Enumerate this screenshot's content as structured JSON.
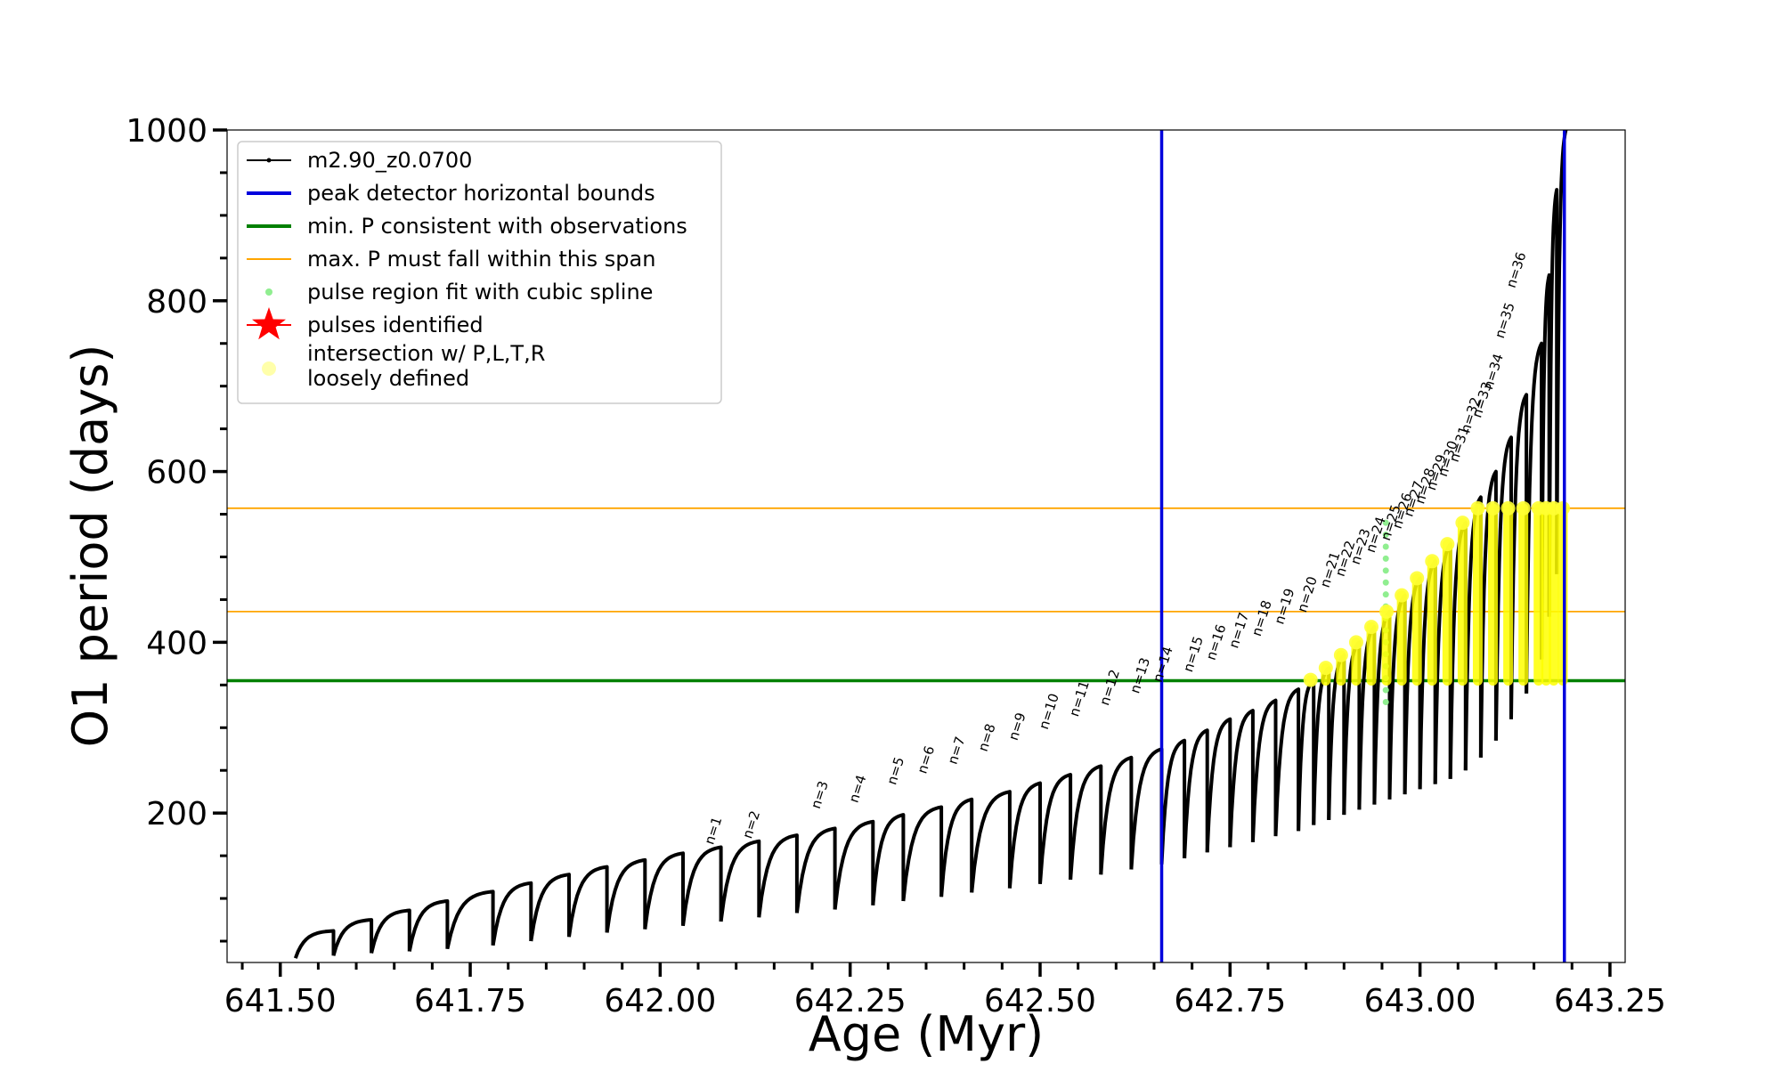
{
  "chart_data": {
    "type": "line",
    "title": "",
    "xlabel": "Age (Myr)",
    "ylabel": "O1 period (days)",
    "xlim": [
      641.43,
      643.27
    ],
    "ylim": [
      25,
      1000
    ],
    "x_ticks": [
      641.5,
      641.75,
      642.0,
      642.25,
      642.5,
      642.75,
      643.0,
      643.25
    ],
    "x_tick_labels": [
      "641.50",
      "641.75",
      "642.00",
      "642.25",
      "642.50",
      "642.75",
      "643.00",
      "643.25"
    ],
    "y_ticks": [
      200,
      400,
      600,
      800,
      1000
    ],
    "y_tick_labels": [
      "200",
      "400",
      "600",
      "800",
      "1000"
    ],
    "y_minor_step": 50,
    "x_minor_step": 0.05,
    "grid": false,
    "legend_position": "top-left",
    "legend": [
      {
        "label": "m2.90_z0.0700",
        "style": "line-dot",
        "color": "#000000"
      },
      {
        "label": "peak detector horizontal bounds",
        "style": "line",
        "color": "#0000dd"
      },
      {
        "label": "min. P consistent with observations",
        "style": "line",
        "color": "#008000"
      },
      {
        "label": "max. P must fall within this span",
        "style": "thin-line",
        "color": "#ffa500"
      },
      {
        "label": "pulse region fit with cubic spline",
        "style": "dot",
        "color": "#90ee90"
      },
      {
        "label": "pulses identified",
        "style": "star",
        "color": "#ff0000"
      },
      {
        "label_lines": [
          "intersection w/ P,L,T,R",
          "loosely defined"
        ],
        "style": "circle",
        "color": "#ffffaa"
      }
    ],
    "series": [
      {
        "name": "m2.90_z0.0700",
        "color": "#000000",
        "cycle_start_age": [
          641.52,
          641.57,
          641.62,
          641.67,
          641.72,
          641.78,
          641.83,
          641.88,
          641.93,
          641.98,
          642.03,
          642.08,
          642.13,
          642.18,
          642.23,
          642.28,
          642.32,
          642.37,
          642.41,
          642.46,
          642.5,
          642.54,
          642.58,
          642.62,
          642.66,
          642.69,
          642.72,
          642.75,
          642.78,
          642.81,
          642.84,
          642.86,
          642.88,
          642.9,
          642.92,
          642.94,
          642.96,
          642.98,
          643.0,
          643.02,
          643.04,
          643.06,
          643.08,
          643.1,
          643.12,
          643.14,
          643.16,
          643.17,
          643.18
        ],
        "cycle_min_period": [
          30,
          33,
          36,
          38,
          41,
          45,
          50,
          55,
          60,
          64,
          68,
          73,
          78,
          83,
          87,
          92,
          97,
          102,
          107,
          112,
          117,
          122,
          128,
          134,
          140,
          147,
          154,
          160,
          166,
          173,
          179,
          186,
          192,
          198,
          204,
          210,
          216,
          222,
          228,
          234,
          240,
          250,
          265,
          285,
          310,
          340,
          380,
          430,
          480
        ],
        "cycle_max_period": [
          62,
          75,
          86,
          97,
          108,
          118,
          128,
          137,
          145,
          153,
          160,
          167,
          174,
          182,
          190,
          198,
          207,
          216,
          225,
          235,
          245,
          255,
          265,
          275,
          285,
          297,
          310,
          320,
          332,
          345,
          356,
          370,
          385,
          400,
          418,
          436,
          455,
          475,
          495,
          515,
          540,
          570,
          600,
          640,
          690,
          750,
          830,
          930,
          1000
        ]
      }
    ],
    "peak_detector_bounds": [
      642.66,
      643.19
    ],
    "min_period_observations": 355,
    "max_period_span": [
      436,
      557
    ],
    "pulse_labels": [
      {
        "label": "n=1",
        "age": 642.065,
        "period": 160
      },
      {
        "label": "n=2",
        "age": 642.115,
        "period": 167
      },
      {
        "label": "n=3",
        "age": 642.205,
        "period": 202
      },
      {
        "label": "n=4",
        "age": 642.255,
        "period": 209
      },
      {
        "label": "n=5",
        "age": 642.305,
        "period": 230
      },
      {
        "label": "n=6",
        "age": 642.345,
        "period": 243
      },
      {
        "label": "n=7",
        "age": 642.385,
        "period": 254
      },
      {
        "label": "n=8",
        "age": 642.425,
        "period": 269
      },
      {
        "label": "n=9",
        "age": 642.465,
        "period": 282
      },
      {
        "label": "n=10",
        "age": 642.505,
        "period": 295
      },
      {
        "label": "n=11",
        "age": 642.545,
        "period": 310
      },
      {
        "label": "n=12",
        "age": 642.585,
        "period": 323
      },
      {
        "label": "n=13",
        "age": 642.625,
        "period": 337
      },
      {
        "label": "n=14",
        "age": 642.655,
        "period": 350
      },
      {
        "label": "n=15",
        "age": 642.695,
        "period": 362
      },
      {
        "label": "n=16",
        "age": 642.725,
        "period": 376
      },
      {
        "label": "n=17",
        "age": 642.755,
        "period": 390
      },
      {
        "label": "n=18",
        "age": 642.785,
        "period": 404
      },
      {
        "label": "n=19",
        "age": 642.815,
        "period": 418
      },
      {
        "label": "n=20",
        "age": 642.845,
        "period": 432
      },
      {
        "label": "n=21",
        "age": 642.875,
        "period": 461
      },
      {
        "label": "n=22",
        "age": 642.895,
        "period": 474
      },
      {
        "label": "n=23",
        "age": 642.915,
        "period": 488
      },
      {
        "label": "n=24",
        "age": 642.935,
        "period": 502
      },
      {
        "label": "n=25",
        "age": 642.955,
        "period": 516
      },
      {
        "label": "n=26",
        "age": 642.97,
        "period": 530
      },
      {
        "label": "n=27",
        "age": 642.985,
        "period": 544
      },
      {
        "label": "n=28",
        "age": 643.0,
        "period": 559
      },
      {
        "label": "n=29",
        "age": 643.015,
        "period": 575
      },
      {
        "label": "n=30",
        "age": 643.03,
        "period": 591
      },
      {
        "label": "n=31",
        "age": 643.045,
        "period": 608
      },
      {
        "label": "n=32",
        "age": 643.06,
        "period": 642
      },
      {
        "label": "n=33",
        "age": 643.075,
        "period": 660
      },
      {
        "label": "n=34",
        "age": 643.09,
        "period": 693
      },
      {
        "label": "n=35",
        "age": 643.105,
        "period": 753
      },
      {
        "label": "n=36",
        "age": 643.12,
        "period": 812
      }
    ]
  }
}
